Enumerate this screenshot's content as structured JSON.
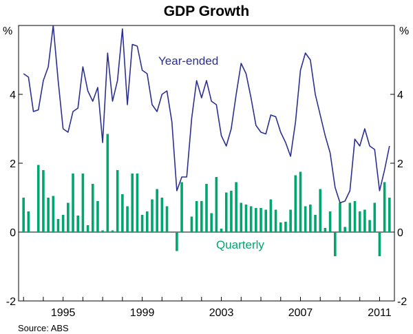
{
  "chart_data": {
    "type": "bar+line",
    "title": "GDP Growth",
    "source": "Source: ABS",
    "y_unit": "%",
    "ylim": [
      -2,
      6
    ],
    "yticks": [
      "-2",
      "0",
      "2",
      "4"
    ],
    "xlim": [
      1992.75,
      2011.75
    ],
    "xticks": [
      {
        "value": 1995,
        "label": "1995"
      },
      {
        "value": 1999,
        "label": "1999"
      },
      {
        "value": 2003,
        "label": "2003"
      },
      {
        "value": 2007,
        "label": "2007"
      },
      {
        "value": 2011,
        "label": "2011"
      }
    ],
    "grid": false,
    "series": [
      {
        "name": "Year-ended",
        "kind": "line",
        "color": "#2b2f8f",
        "start": 1993.0,
        "step": 0.25,
        "values": [
          4.6,
          4.5,
          3.5,
          3.55,
          4.4,
          4.8,
          6.0,
          4.4,
          3.0,
          2.9,
          3.5,
          3.6,
          4.8,
          4.1,
          3.8,
          4.2,
          2.6,
          5.2,
          3.8,
          4.4,
          5.9,
          3.7,
          5.45,
          5.4,
          4.7,
          4.6,
          3.7,
          3.5,
          4.0,
          4.1,
          3.2,
          1.2,
          1.6,
          1.6,
          3.3,
          4.4,
          3.9,
          4.4,
          3.8,
          3.7,
          2.8,
          2.5,
          3.0,
          4.0,
          4.9,
          4.6,
          3.9,
          3.1,
          2.9,
          2.85,
          3.4,
          3.35,
          2.9,
          2.6,
          2.2,
          3.2,
          4.7,
          5.2,
          5.0,
          4.0,
          3.4,
          2.8,
          2.3,
          1.3,
          0.85,
          0.9,
          1.2,
          2.7,
          2.5,
          3.0,
          2.5,
          2.4,
          1.2,
          1.8,
          2.5
        ]
      },
      {
        "name": "Quarterly",
        "kind": "bar",
        "color": "#00a66e",
        "start": 1993.0,
        "step": 0.25,
        "values": [
          1.0,
          0.6,
          0.0,
          1.95,
          1.8,
          1.0,
          1.05,
          0.38,
          0.5,
          0.85,
          1.7,
          0.48,
          1.7,
          0.2,
          1.4,
          0.9,
          0.05,
          2.85,
          0.05,
          1.8,
          1.1,
          0.75,
          1.7,
          1.7,
          0.5,
          0.6,
          0.95,
          1.25,
          1.0,
          0.75,
          0.0,
          -0.55,
          1.45,
          0.0,
          0.45,
          0.9,
          0.9,
          1.4,
          0.55,
          1.6,
          0.1,
          1.15,
          1.2,
          1.45,
          0.85,
          0.8,
          0.75,
          0.7,
          0.7,
          0.65,
          0.95,
          0.65,
          0.28,
          0.3,
          0.65,
          1.65,
          1.75,
          0.75,
          0.8,
          0.5,
          1.25,
          0.12,
          0.6,
          -0.7,
          0.85,
          0.15,
          0.85,
          0.9,
          0.6,
          0.65,
          0.35,
          0.85,
          -0.7,
          1.45,
          1.0
        ]
      }
    ]
  }
}
